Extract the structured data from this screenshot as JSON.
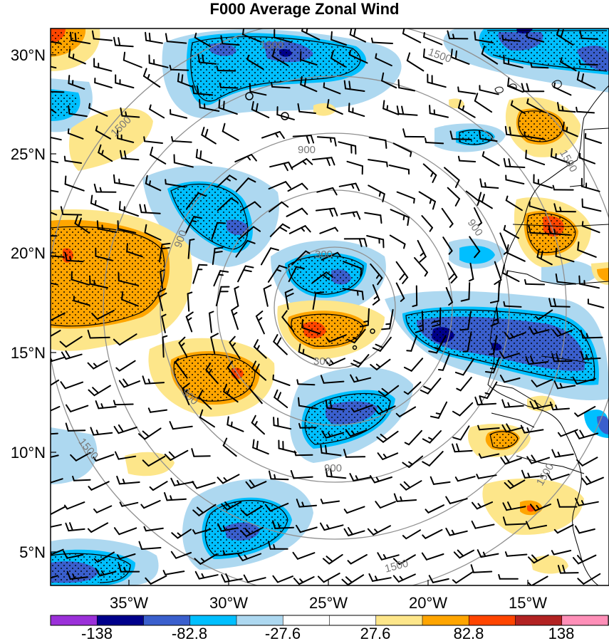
{
  "title": "F000 Average Zonal Wind",
  "map": {
    "lon_ticks": [
      "35°W",
      "30°W",
      "25°W",
      "20°W",
      "15°W"
    ],
    "lat_ticks": [
      "30°N",
      "25°N",
      "20°N",
      "15°N",
      "10°N",
      "5°N"
    ],
    "ring_labels": [
      "300",
      "300",
      "900",
      "900",
      "900",
      "900",
      "900",
      "1500",
      "1500",
      "1500",
      "1500",
      "1500",
      "1500",
      "1500"
    ],
    "fill_palette": [
      "#9b30d9",
      "#00008b",
      "#3a5fcd",
      "#00bfff",
      "#add8f0",
      "#ffffff",
      "#ffffff",
      "#fde68a",
      "#ffa500",
      "#ff4500",
      "#b22222",
      "#ff8fb8"
    ],
    "shaded_regions": [
      {
        "name": "strong-westerly-west",
        "sign": "positive",
        "level": 82.8
      },
      {
        "name": "strong-westerly-center",
        "sign": "positive",
        "level": 82.8
      },
      {
        "name": "easterly-jet-east",
        "sign": "negative",
        "level": -110.4
      },
      {
        "name": "easterly-jet-north",
        "sign": "negative",
        "level": -82.8
      }
    ]
  },
  "colorbar": {
    "labels": [
      "-138",
      "-82.8",
      "-27.6",
      "27.6",
      "82.8",
      "138"
    ],
    "colors": [
      "#9b30d9",
      "#00008b",
      "#3a5fcd",
      "#00bfff",
      "#add8f0",
      "#ffffff",
      "#ffffff",
      "#fde68a",
      "#ffa500",
      "#ff4500",
      "#b22222",
      "#ff8fb8"
    ]
  }
}
